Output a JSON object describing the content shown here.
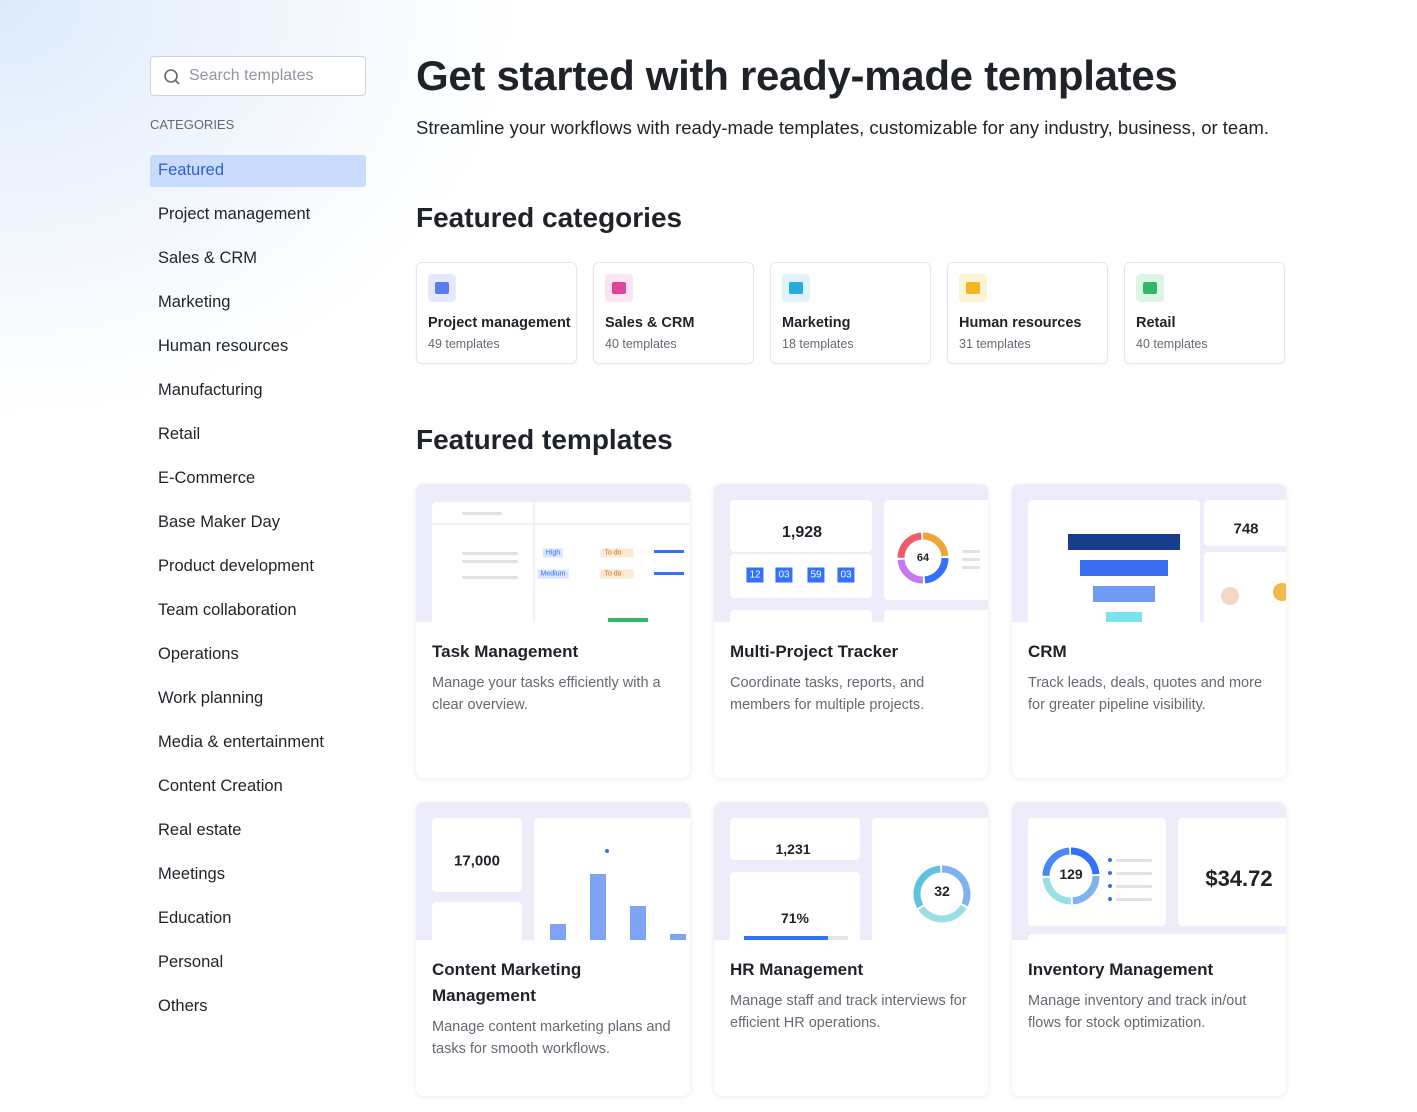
{
  "search": {
    "placeholder": "Search templates"
  },
  "sidebar": {
    "heading": "CATEGORIES",
    "active_index": 0,
    "items": [
      "Featured",
      "Project management",
      "Sales & CRM",
      "Marketing",
      "Human resources",
      "Manufacturing",
      "Retail",
      "E-Commerce",
      "Base Maker Day",
      "Product development",
      "Team collaboration",
      "Operations",
      "Work planning",
      "Media & entertainment",
      "Content Creation",
      "Real estate",
      "Meetings",
      "Education",
      "Personal",
      "Others"
    ]
  },
  "header": {
    "title": "Get started with ready-made templates",
    "subtitle": "Streamline your workflows with ready-made templates, customizable for any industry, business, or team."
  },
  "featured_categories": {
    "title": "Featured categories",
    "items": [
      {
        "name": "Project management",
        "count": "49 templates",
        "color": "#5b7cf0",
        "icon_bg": "#e4e9fd"
      },
      {
        "name": "Sales & CRM",
        "count": "40 templates",
        "color": "#e0449a",
        "icon_bg": "#fce4f1"
      },
      {
        "name": "Marketing",
        "count": "18 templates",
        "color": "#2aa8e0",
        "icon_bg": "#dff3fb"
      },
      {
        "name": "Human resources",
        "count": "31 templates",
        "color": "#f2b51d",
        "icon_bg": "#fdf3d6"
      },
      {
        "name": "Retail",
        "count": "40 templates",
        "color": "#34b765",
        "icon_bg": "#dcf5e5"
      }
    ]
  },
  "featured_templates": {
    "title": "Featured templates",
    "items": [
      {
        "name": "Task Management",
        "description": "Manage your tasks efficiently with a clear overview.",
        "preview": {
          "labels": [
            "High",
            "Medium",
            "To do",
            "To do"
          ]
        }
      },
      {
        "name": "Multi-Project Tracker",
        "description": "Coordinate tasks, reports, and members for multiple projects.",
        "preview": {
          "labels": [
            "1,928",
            "64",
            "12",
            "03",
            "59",
            "03"
          ]
        }
      },
      {
        "name": "CRM",
        "description": "Track leads, deals, quotes and more for greater pipeline visibility.",
        "preview": {
          "labels": [
            "748"
          ]
        }
      },
      {
        "name": "Content Marketing Management",
        "description": "Manage content marketing plans and tasks for smooth workflows.",
        "preview": {
          "labels": [
            "17,000"
          ]
        }
      },
      {
        "name": "HR Management",
        "description": "Manage staff and track interviews for efficient HR operations.",
        "preview": {
          "labels": [
            "1,231",
            "71%",
            "32"
          ]
        }
      },
      {
        "name": "Inventory Management",
        "description": "Manage inventory and track in/out flows for stock optimization.",
        "preview": {
          "labels": [
            "129",
            "$34.72"
          ]
        }
      }
    ]
  }
}
